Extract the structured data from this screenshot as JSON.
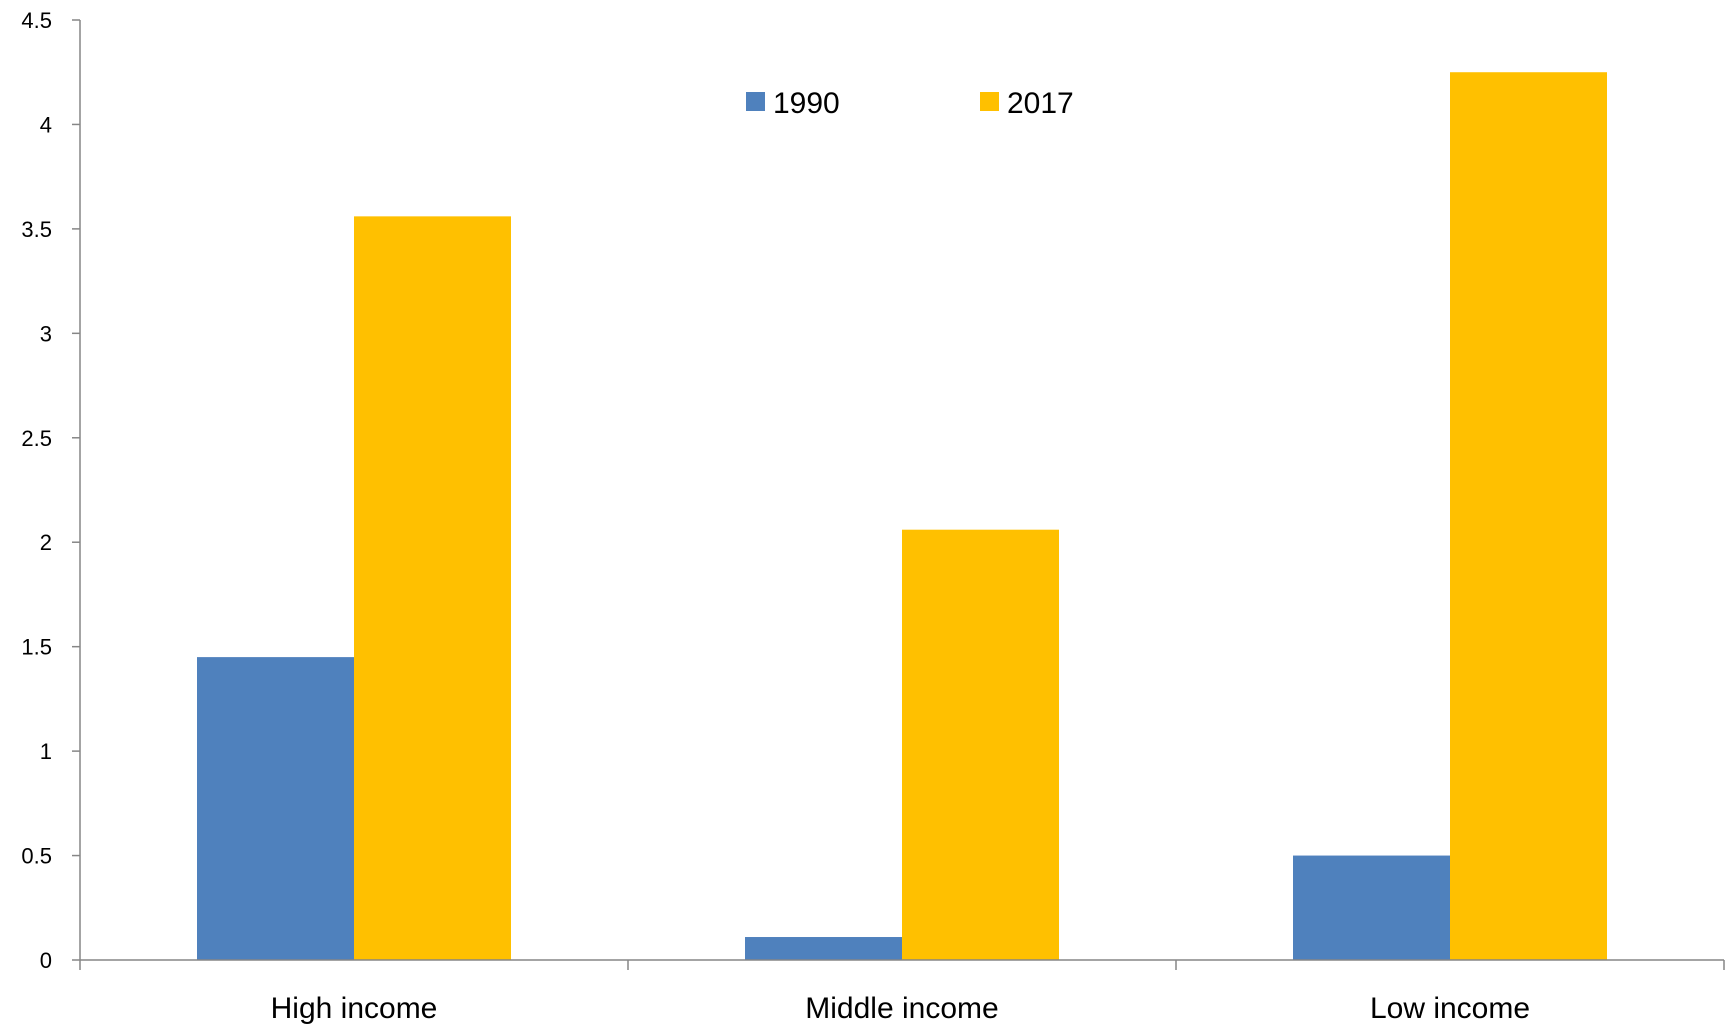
{
  "chart_data": {
    "type": "bar",
    "title": "",
    "xlabel": "",
    "ylabel": "",
    "categories": [
      "High income",
      "Middle income",
      "Low income"
    ],
    "series": [
      {
        "name": "1990",
        "color": "#4F81BD",
        "values": [
          1.45,
          0.11,
          0.5
        ]
      },
      {
        "name": "2017",
        "color": "#FFC000",
        "values": [
          3.56,
          2.06,
          4.25
        ]
      }
    ],
    "ylim": [
      0,
      4.5
    ],
    "yticks": [
      "0",
      "0.5",
      "1",
      "1.5",
      "2",
      "2.5",
      "3",
      "3.5",
      "4",
      "4.5"
    ],
    "grid": false,
    "legend_position": "top-center"
  }
}
